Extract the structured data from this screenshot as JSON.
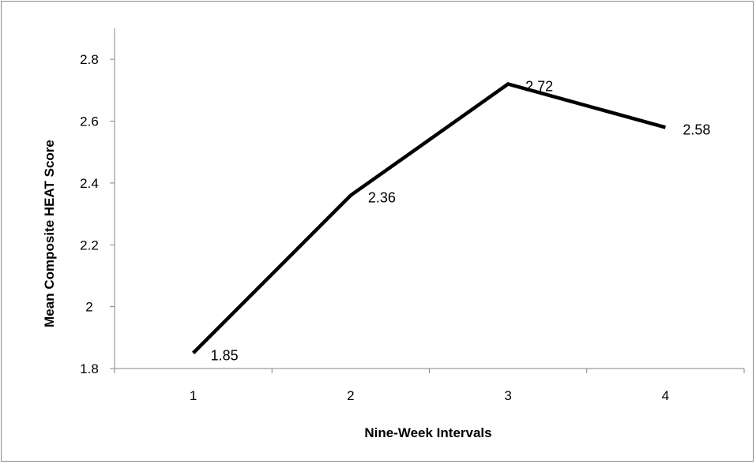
{
  "chart_data": {
    "type": "line",
    "title": "",
    "xlabel": "Nine-Week Intervals",
    "ylabel": "Mean Composite HEAT Score",
    "categories": [
      "1",
      "2",
      "3",
      "4"
    ],
    "series": [
      {
        "values": [
          1.85,
          2.36,
          2.72,
          2.58
        ]
      }
    ],
    "data_labels": [
      "1.85",
      "2.36",
      "2.72",
      "2.58"
    ],
    "ylim": [
      1.8,
      2.9
    ],
    "yticks": [
      1.8,
      2.0,
      2.2,
      2.4,
      2.6,
      2.8
    ],
    "ytick_labels": [
      "1.8",
      "2",
      "2.2",
      "2.4",
      "2.6",
      "2.8"
    ],
    "grid": false,
    "legend": "none",
    "line_color": "#000000"
  }
}
